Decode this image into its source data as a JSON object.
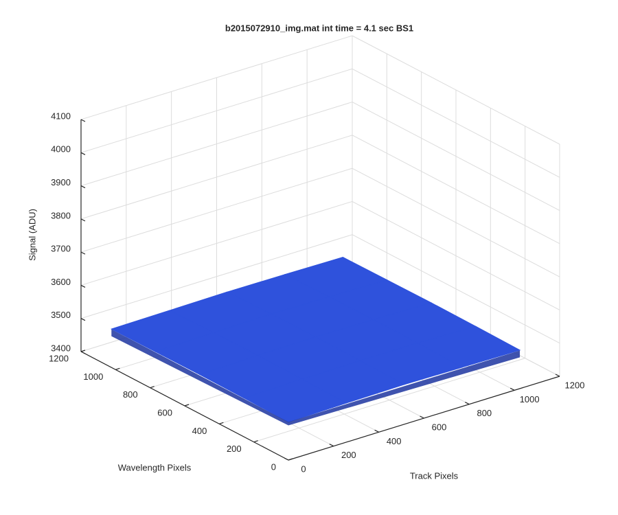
{
  "chart_data": {
    "type": "surface",
    "title": "b2015072910_img.mat int time = 4.1 sec   BS1",
    "xlabel": "Track Pixels",
    "ylabel": "Wavelength Pixels",
    "zlabel": "Signal (ADU)",
    "xlim": [
      0,
      1200
    ],
    "xticks": [
      0,
      200,
      400,
      600,
      800,
      1000,
      1200
    ],
    "ylim": [
      0,
      1200
    ],
    "yticks": [
      0,
      200,
      400,
      600,
      800,
      1000,
      1200
    ],
    "zlim": [
      3400,
      4100
    ],
    "zticks": [
      3400,
      3500,
      3600,
      3700,
      3800,
      3900,
      4000,
      4100
    ],
    "x": [
      0,
      256,
      512,
      768,
      1024
    ],
    "y": [
      0,
      256,
      512,
      768,
      1024
    ],
    "z": [
      [
        3515,
        3518,
        3520,
        3518,
        3516
      ],
      [
        3517,
        3520,
        3522,
        3521,
        3518
      ],
      [
        3518,
        3522,
        3524,
        3522,
        3519
      ],
      [
        3517,
        3521,
        3523,
        3521,
        3518
      ],
      [
        3516,
        3518,
        3520,
        3519,
        3517
      ]
    ],
    "color": "#2f52dc",
    "edge_color": "#1d35a0",
    "grid": true
  }
}
